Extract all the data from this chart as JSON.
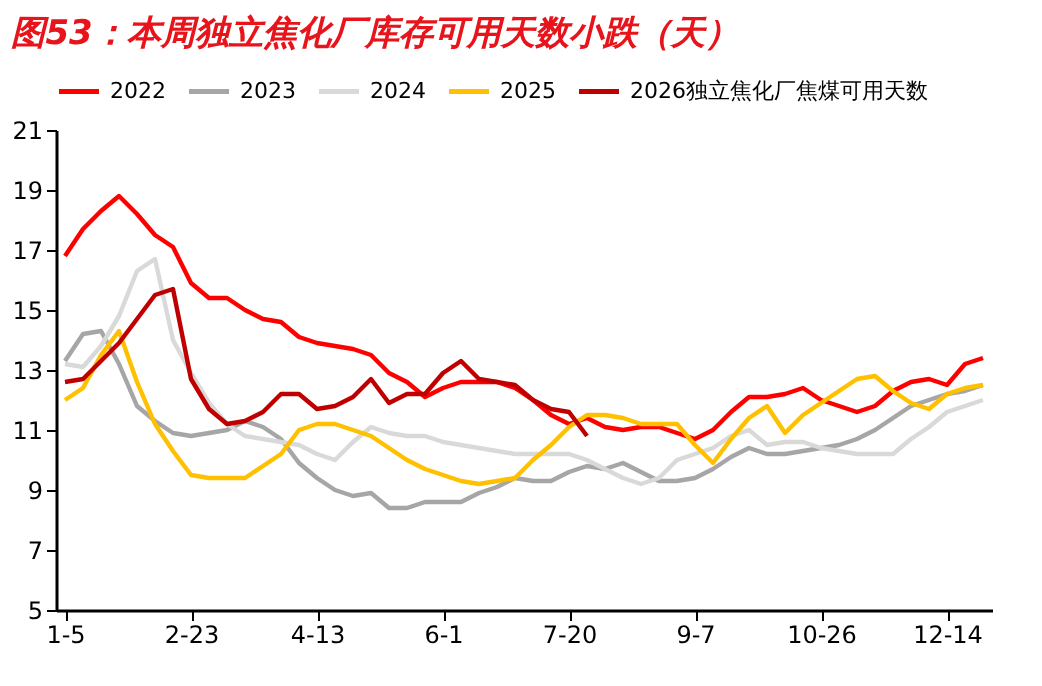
{
  "chart_data": {
    "type": "line",
    "title": "图53：本周独立焦化厂库存可用天数小跌（天）",
    "categories": [
      "1-5",
      null,
      null,
      null,
      null,
      null,
      null,
      "2-23",
      null,
      null,
      null,
      null,
      null,
      null,
      "4-13",
      null,
      null,
      null,
      null,
      null,
      null,
      "6-1",
      null,
      null,
      null,
      null,
      null,
      null,
      "7-20",
      null,
      null,
      null,
      null,
      null,
      null,
      "9-7",
      null,
      null,
      null,
      null,
      null,
      null,
      "10-26",
      null,
      null,
      null,
      null,
      null,
      null,
      "12-14",
      null,
      null
    ],
    "ylim": [
      5,
      21
    ],
    "yticks": [
      5,
      7,
      9,
      11,
      13,
      15,
      17,
      19,
      21
    ],
    "grid": false,
    "legend": "top",
    "marker": "none",
    "line_style": "solid",
    "series": [
      {
        "name": "2022",
        "color": "#ff0000",
        "values": [
          16.8,
          17.7,
          18.3,
          18.8,
          18.2,
          17.5,
          17.1,
          15.9,
          15.4,
          15.4,
          15.0,
          14.7,
          14.6,
          14.1,
          13.9,
          13.8,
          13.7,
          13.5,
          12.9,
          12.6,
          12.1,
          12.4,
          12.6,
          12.6,
          12.6,
          12.4,
          12.0,
          11.5,
          11.2,
          11.4,
          11.1,
          11.0,
          11.1,
          11.1,
          10.9,
          10.7,
          11.0,
          11.6,
          12.1,
          12.1,
          12.2,
          12.4,
          12.0,
          11.8,
          11.6,
          11.8,
          12.3,
          12.6,
          12.7,
          12.5,
          13.2,
          13.4
        ]
      },
      {
        "name": "2023",
        "color": "#a6a6a6",
        "values": [
          13.3,
          14.2,
          14.3,
          13.2,
          11.8,
          11.3,
          10.9,
          10.8,
          10.9,
          11.0,
          11.3,
          11.1,
          10.7,
          9.9,
          9.4,
          9.0,
          8.8,
          8.9,
          8.4,
          8.4,
          8.6,
          8.6,
          8.6,
          8.9,
          9.1,
          9.4,
          9.3,
          9.3,
          9.6,
          9.8,
          9.7,
          9.9,
          9.6,
          9.3,
          9.3,
          9.4,
          9.7,
          10.1,
          10.4,
          10.2,
          10.2,
          10.3,
          10.4,
          10.5,
          10.7,
          11.0,
          11.4,
          11.8,
          12.0,
          12.2,
          12.3,
          12.5
        ]
      },
      {
        "name": "2024",
        "color": "#d9d9d9",
        "values": [
          13.2,
          13.1,
          13.8,
          14.8,
          16.3,
          16.7,
          14.0,
          12.9,
          11.9,
          11.2,
          10.8,
          10.7,
          10.6,
          10.5,
          10.2,
          10.0,
          10.6,
          11.1,
          10.9,
          10.8,
          10.8,
          10.6,
          10.5,
          10.4,
          10.3,
          10.2,
          10.2,
          10.2,
          10.2,
          10.0,
          9.7,
          9.4,
          9.2,
          9.4,
          10.0,
          10.2,
          10.4,
          10.8,
          11.0,
          10.5,
          10.6,
          10.6,
          10.4,
          10.3,
          10.2,
          10.2,
          10.2,
          10.7,
          11.1,
          11.6,
          11.8,
          12.0
        ]
      },
      {
        "name": "2025",
        "color": "#ffc000",
        "values": [
          12.0,
          12.4,
          13.5,
          14.3,
          12.6,
          11.2,
          10.3,
          9.5,
          9.4,
          9.4,
          9.4,
          9.8,
          10.2,
          11.0,
          11.2,
          11.2,
          11.0,
          10.8,
          10.4,
          10.0,
          9.7,
          9.5,
          9.3,
          9.2,
          9.3,
          9.4,
          10.0,
          10.5,
          11.1,
          11.5,
          11.5,
          11.4,
          11.2,
          11.2,
          11.2,
          10.5,
          9.9,
          10.7,
          11.4,
          11.8,
          10.9,
          11.5,
          11.9,
          12.3,
          12.7,
          12.8,
          12.3,
          11.9,
          11.7,
          12.2,
          12.4,
          12.5
        ]
      },
      {
        "name": "2026独立焦化厂焦煤可用天数",
        "color": "#c00000",
        "values": [
          12.6,
          12.7,
          13.3,
          13.9,
          14.7,
          15.5,
          15.7,
          12.7,
          11.7,
          11.2,
          11.3,
          11.6,
          12.2,
          12.2,
          11.7,
          11.8,
          12.1,
          12.7,
          11.9,
          12.2,
          12.2,
          12.9,
          13.3,
          12.7,
          12.6,
          12.5,
          12.0,
          11.7,
          11.6,
          10.8,
          null,
          null,
          null,
          null,
          null,
          null,
          null,
          null,
          null,
          null,
          null,
          null,
          null,
          null,
          null,
          null,
          null,
          null,
          null,
          null,
          null,
          null
        ]
      }
    ]
  }
}
